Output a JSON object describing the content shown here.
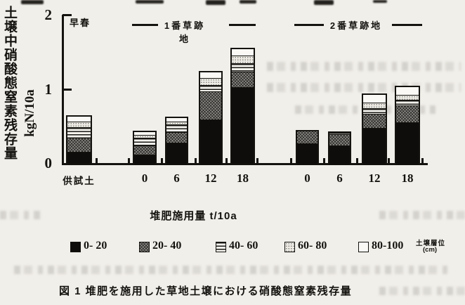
{
  "page": {
    "type": "scanned-figure",
    "paper_color": "#f1efea",
    "ink_color": "#15130f",
    "caption": "図 1  堆肥を施用した草地土壌における硝酸態窒素残存量"
  },
  "chart_data": {
    "type": "bar",
    "stacked": true,
    "orientation": "vertical",
    "grid": false,
    "season_label": "早春",
    "group_headers": [
      "1番草跡地",
      "2番草跡地"
    ],
    "ylabel": "土壌中硝酸態窒素残存量",
    "ylabel_unit": "kgN/10a",
    "xlabel": "堆肥施用量 t/10a",
    "ylim": [
      0,
      2
    ],
    "yticks": [
      "0",
      "1",
      "2"
    ],
    "categories": [
      "供試土",
      "0",
      "6",
      "12",
      "18",
      "0",
      "6",
      "12",
      "18"
    ],
    "category_groups": [
      "早春(供試土)",
      "1番草跡地",
      "1番草跡地",
      "1番草跡地",
      "1番草跡地",
      "2番草跡地",
      "2番草跡地",
      "2番草跡地",
      "2番草跡地"
    ],
    "legend_title": "土壌層位",
    "legend_title_unit": "(cm)",
    "legend_position": "bottom",
    "unit": "kgN/10a",
    "series": [
      {
        "name": "0- 20",
        "pattern": "solid-black",
        "values": [
          0.17,
          0.14,
          0.3,
          0.6,
          1.04,
          0.29,
          0.26,
          0.49,
          0.57
        ]
      },
      {
        "name": "20- 40",
        "pattern": "crosshatch",
        "values": [
          0.19,
          0.12,
          0.14,
          0.38,
          0.21,
          0.16,
          0.15,
          0.19,
          0.22
        ]
      },
      {
        "name": "40- 60",
        "pattern": "hlines",
        "values": [
          0.14,
          0.1,
          0.1,
          0.09,
          0.11,
          0.0,
          0.02,
          0.08,
          0.08
        ]
      },
      {
        "name": "60- 80",
        "pattern": "light-dots",
        "values": [
          0.07,
          0.04,
          0.04,
          0.09,
          0.1,
          0.0,
          0.0,
          0.08,
          0.07
        ]
      },
      {
        "name": "80-100",
        "pattern": "white",
        "values": [
          0.07,
          0.04,
          0.05,
          0.08,
          0.09,
          0.0,
          0.0,
          0.1,
          0.1
        ]
      }
    ],
    "totals": [
      0.64,
      0.44,
      0.63,
      1.24,
      1.55,
      0.45,
      0.43,
      0.94,
      1.04
    ]
  }
}
